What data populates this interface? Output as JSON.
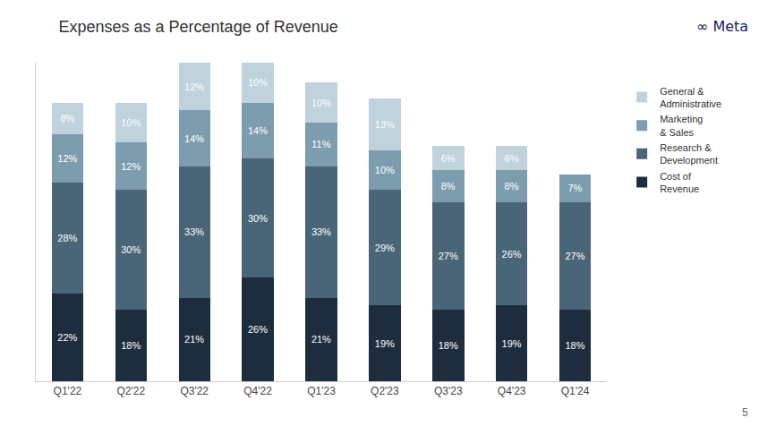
{
  "chart_data": {
    "type": "bar",
    "title": "Expenses as a Percentage of Revenue",
    "categories": [
      "Q1'22",
      "Q2'22",
      "Q3'22",
      "Q4'22",
      "Q1'23",
      "Q2'23",
      "Q3'23",
      "Q4'23",
      "Q1'24"
    ],
    "series": [
      {
        "name": "Cost of\nRevenue",
        "color": "#1e2d3d",
        "values": [
          22,
          18,
          21,
          26,
          21,
          19,
          18,
          19,
          18
        ],
        "value_labels": [
          "22%",
          "18%",
          "21%",
          "26%",
          "21%",
          "19%",
          "18%",
          "19%",
          "18%"
        ]
      },
      {
        "name": "Research &\nDevelopment",
        "color": "#4a6578",
        "values": [
          28,
          30,
          33,
          30,
          33,
          29,
          27,
          26,
          27
        ],
        "value_labels": [
          "28%",
          "30%",
          "33%",
          "30%",
          "33%",
          "29%",
          "27%",
          "26%",
          "27%"
        ]
      },
      {
        "name": "Marketing\n& Sales",
        "color": "#7d9dae",
        "values": [
          12,
          12,
          14,
          14,
          11,
          10,
          8,
          8,
          7
        ],
        "value_labels": [
          "12%",
          "12%",
          "14%",
          "14%",
          "11%",
          "10%",
          "8%",
          "8%",
          "7%"
        ]
      },
      {
        "name": "General &\nAdministrative",
        "color": "#c0d2db",
        "values": [
          8,
          10,
          12,
          10,
          10,
          13,
          6,
          6,
          0
        ],
        "value_labels": [
          "8%",
          "10%",
          "12%",
          "10%",
          "10%",
          "13%",
          "6%",
          "6%",
          null
        ]
      }
    ],
    "stacked": true,
    "data_labels": true,
    "ylim": [
      0,
      80
    ],
    "tick_labels": "x",
    "grid": false,
    "legend": "right",
    "annotations": [
      "∞ Meta",
      "5"
    ]
  }
}
